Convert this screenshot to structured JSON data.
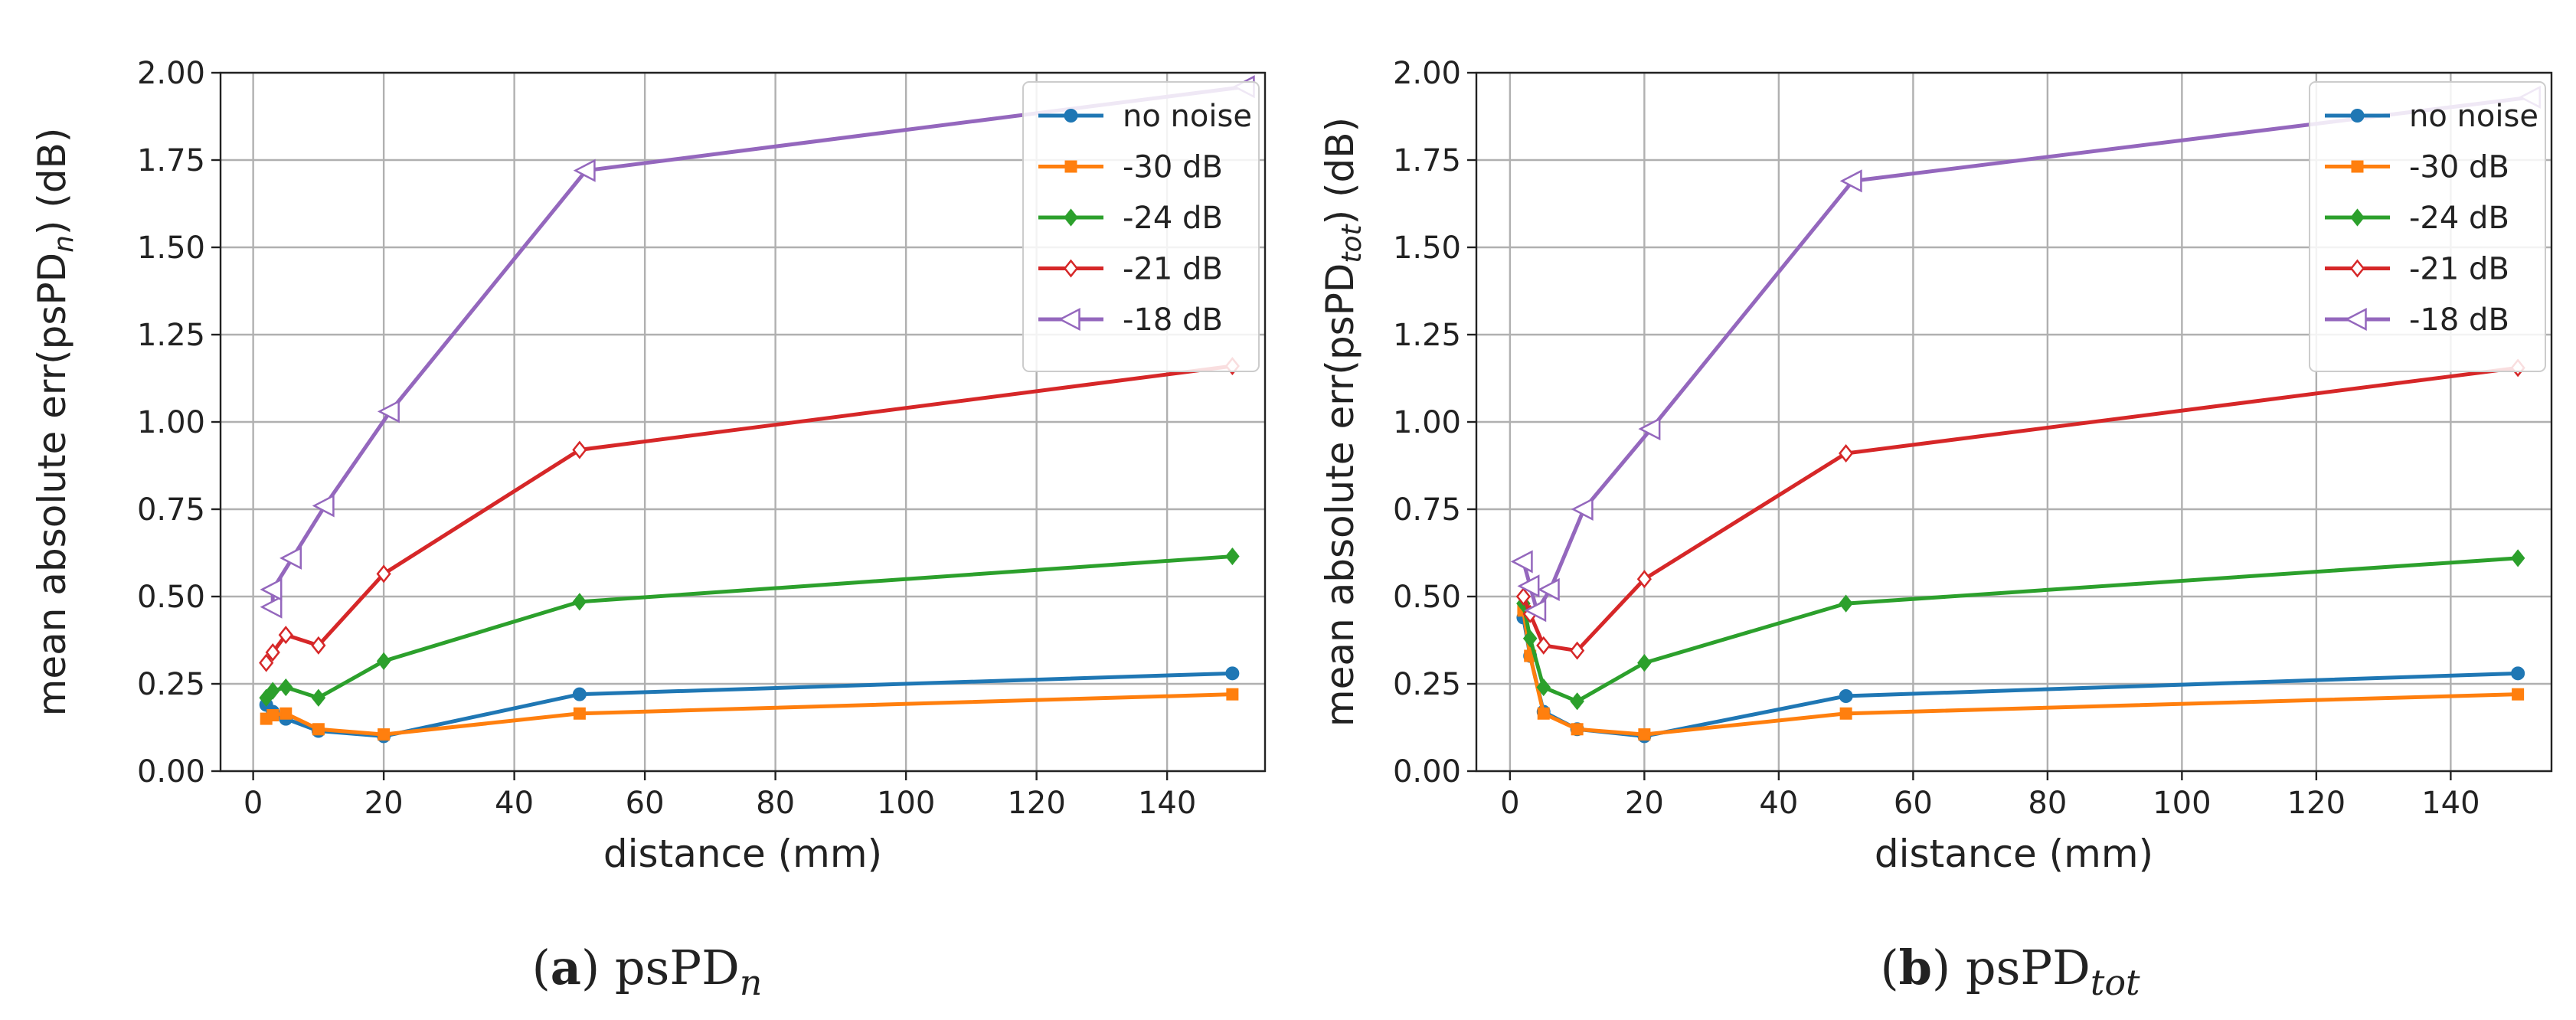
{
  "chart_data": [
    {
      "type": "line",
      "panel_letter": "a",
      "caption_base": "psPD",
      "caption_sub": "n",
      "ylabel_prefix": "mean absolute err(psPD",
      "ylabel_sub": "n",
      "ylabel_suffix": ") (dB)",
      "xlabel": "distance (mm)",
      "xlim": [
        -5,
        155
      ],
      "ylim": [
        0,
        2.0
      ],
      "xticks": [
        0,
        20,
        40,
        60,
        80,
        100,
        120,
        140
      ],
      "xtick_labels": [
        "0",
        "20",
        "40",
        "60",
        "80",
        "100",
        "120",
        "140"
      ],
      "yticks": [
        0,
        0.25,
        0.5,
        0.75,
        1.0,
        1.25,
        1.5,
        1.75,
        2.0
      ],
      "ytick_labels": [
        "0.00",
        "0.25",
        "0.50",
        "0.75",
        "1.00",
        "1.25",
        "1.50",
        "1.75",
        "2.00"
      ],
      "grid": true,
      "legend_position": "top-right",
      "series": [
        {
          "name": "no noise",
          "color": "#1f77b4",
          "marker": "circle",
          "x": [
            2,
            3,
            5,
            10,
            20,
            50,
            150
          ],
          "y": [
            0.19,
            0.17,
            0.15,
            0.115,
            0.1,
            0.22,
            0.28
          ]
        },
        {
          "name": "-30 dB",
          "color": "#ff7f0e",
          "marker": "square",
          "x": [
            2,
            3,
            5,
            10,
            20,
            50,
            150
          ],
          "y": [
            0.15,
            0.16,
            0.165,
            0.12,
            0.105,
            0.165,
            0.22
          ]
        },
        {
          "name": "-24 dB",
          "color": "#2ca02c",
          "marker": "diamond",
          "x": [
            2,
            3,
            5,
            10,
            20,
            50,
            150
          ],
          "y": [
            0.21,
            0.23,
            0.24,
            0.21,
            0.315,
            0.485,
            0.615
          ]
        },
        {
          "name": "-21 dB",
          "color": "#d62728",
          "marker": "diamond-open",
          "x": [
            2,
            3,
            5,
            10,
            20,
            50,
            150
          ],
          "y": [
            0.31,
            0.34,
            0.39,
            0.36,
            0.565,
            0.92,
            1.16
          ]
        },
        {
          "name": "-18 dB",
          "color": "#9467bd",
          "marker": "triangle-left-open",
          "x": [
            3,
            3,
            6,
            11,
            21,
            51,
            152
          ],
          "y": [
            0.47,
            0.52,
            0.61,
            0.76,
            1.03,
            1.72,
            1.96
          ]
        }
      ]
    },
    {
      "type": "line",
      "panel_letter": "b",
      "caption_base": "psPD",
      "caption_sub": "tot",
      "ylabel_prefix": "mean absolute err(psPD",
      "ylabel_sub": "tot",
      "ylabel_suffix": ") (dB)",
      "xlabel": "distance (mm)",
      "xlim": [
        -5,
        155
      ],
      "ylim": [
        0,
        2.0
      ],
      "xticks": [
        0,
        20,
        40,
        60,
        80,
        100,
        120,
        140
      ],
      "xtick_labels": [
        "0",
        "20",
        "40",
        "60",
        "80",
        "100",
        "120",
        "140"
      ],
      "yticks": [
        0,
        0.25,
        0.5,
        0.75,
        1.0,
        1.25,
        1.5,
        1.75,
        2.0
      ],
      "ytick_labels": [
        "0.00",
        "0.25",
        "0.50",
        "0.75",
        "1.00",
        "1.25",
        "1.50",
        "1.75",
        "2.00"
      ],
      "grid": true,
      "legend_position": "top-right",
      "series": [
        {
          "name": "no noise",
          "color": "#1f77b4",
          "marker": "circle",
          "x": [
            2,
            3,
            5,
            10,
            20,
            50,
            150
          ],
          "y": [
            0.44,
            0.33,
            0.17,
            0.12,
            0.1,
            0.215,
            0.28
          ]
        },
        {
          "name": "-30 dB",
          "color": "#ff7f0e",
          "marker": "square",
          "x": [
            2,
            3,
            5,
            10,
            20,
            50,
            150
          ],
          "y": [
            0.46,
            0.33,
            0.165,
            0.12,
            0.105,
            0.165,
            0.22
          ]
        },
        {
          "name": "-24 dB",
          "color": "#2ca02c",
          "marker": "diamond",
          "x": [
            2,
            3,
            5,
            10,
            20,
            50,
            150
          ],
          "y": [
            0.48,
            0.38,
            0.24,
            0.2,
            0.31,
            0.48,
            0.61
          ]
        },
        {
          "name": "-21 dB",
          "color": "#d62728",
          "marker": "diamond-open",
          "x": [
            2,
            3,
            5,
            10,
            20,
            50,
            150
          ],
          "y": [
            0.5,
            0.45,
            0.36,
            0.345,
            0.55,
            0.91,
            1.155
          ]
        },
        {
          "name": "-18 dB",
          "color": "#9467bd",
          "marker": "triangle-left-open",
          "x": [
            2,
            3,
            4,
            6,
            11,
            21,
            51,
            152
          ],
          "y": [
            0.6,
            0.53,
            0.46,
            0.52,
            0.75,
            0.98,
            1.69,
            1.93
          ]
        }
      ]
    }
  ]
}
